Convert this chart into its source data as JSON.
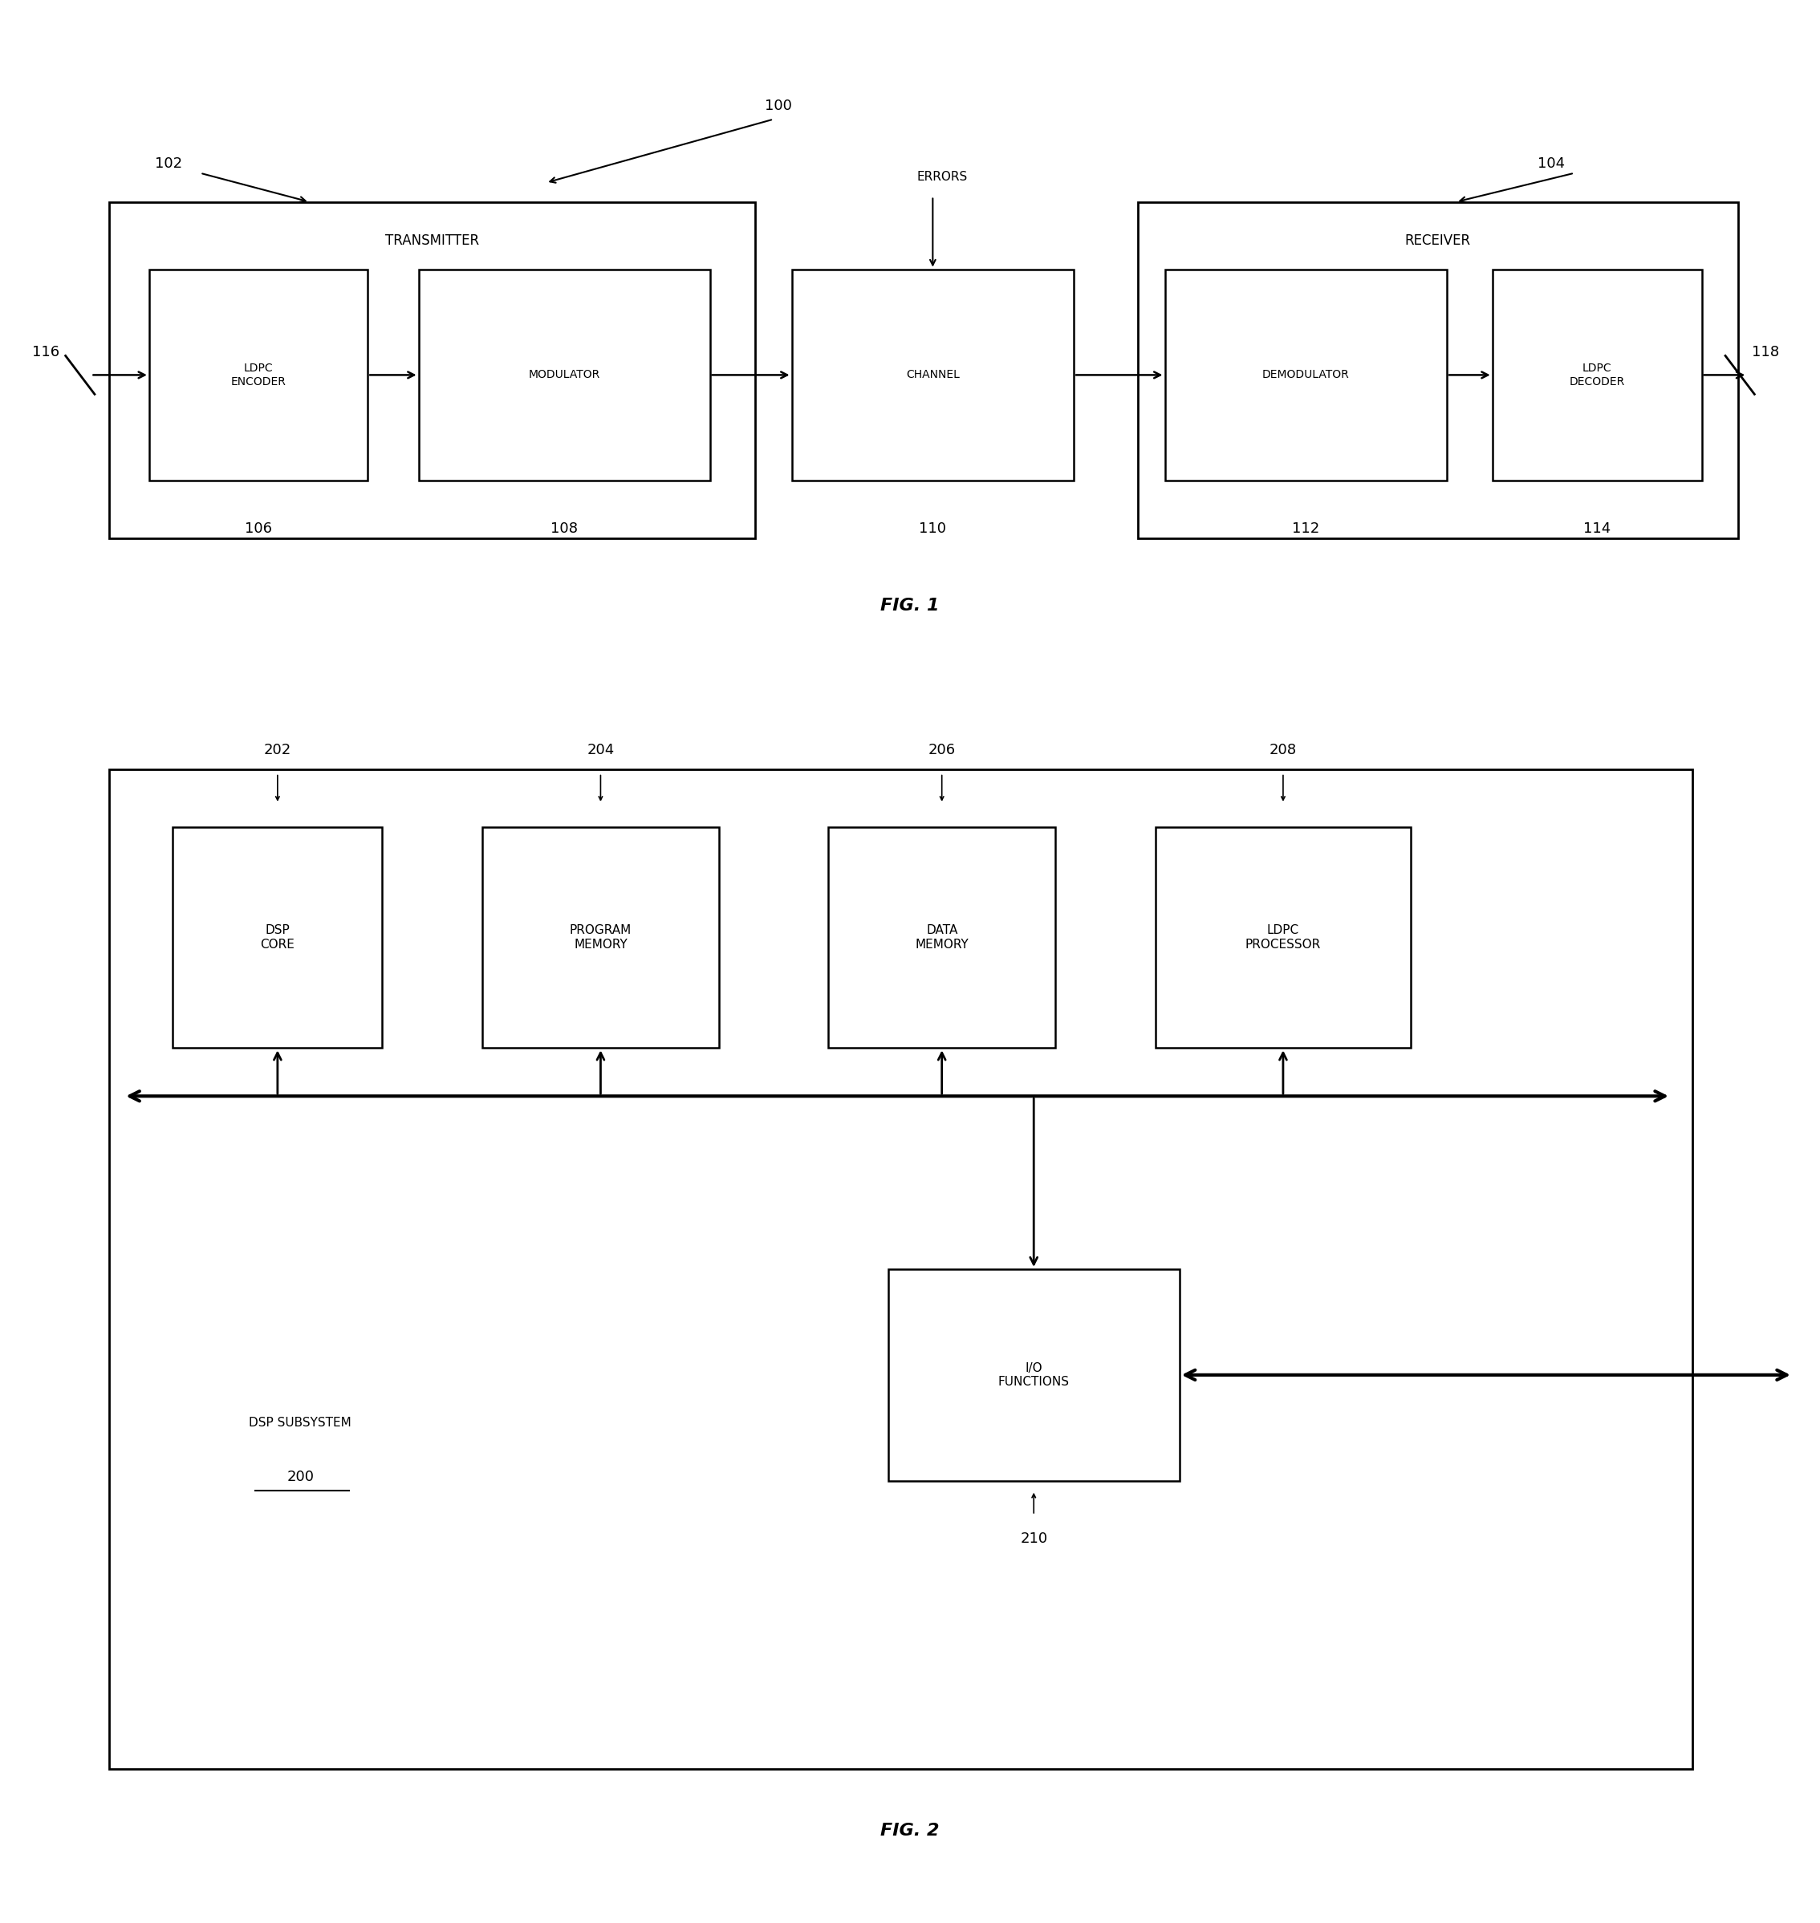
{
  "fig_width": 22.68,
  "fig_height": 23.97,
  "bg_color": "#ffffff",
  "fig1": {
    "title": "FIG. 1",
    "label_100": "100",
    "label_102": "102",
    "label_104": "104",
    "label_116": "116",
    "label_118": "118",
    "transmitter_label": "TRANSMITTER",
    "receiver_label": "RECEIVER",
    "errors_label": "ERRORS",
    "boxes": [
      {
        "label": "LDPC\nENCODER",
        "num": "106"
      },
      {
        "label": "MODULATOR",
        "num": "108"
      },
      {
        "label": "CHANNEL",
        "num": "110"
      },
      {
        "label": "DEMODULATOR",
        "num": "112"
      },
      {
        "label": "LDPC\nDECODER",
        "num": "114"
      }
    ]
  },
  "fig2": {
    "title": "FIG. 2",
    "subsystem_label": "DSP SUBSYSTEM",
    "subsystem_num": "200",
    "boxes": [
      {
        "label": "DSP\nCORE",
        "num": "202"
      },
      {
        "label": "PROGRAM\nMEMORY",
        "num": "204"
      },
      {
        "label": "DATA\nMEMORY",
        "num": "206"
      },
      {
        "label": "LDPC\nPROCESSOR",
        "num": "208"
      },
      {
        "label": "I/O\nFUNCTIONS",
        "num": "210"
      }
    ]
  }
}
